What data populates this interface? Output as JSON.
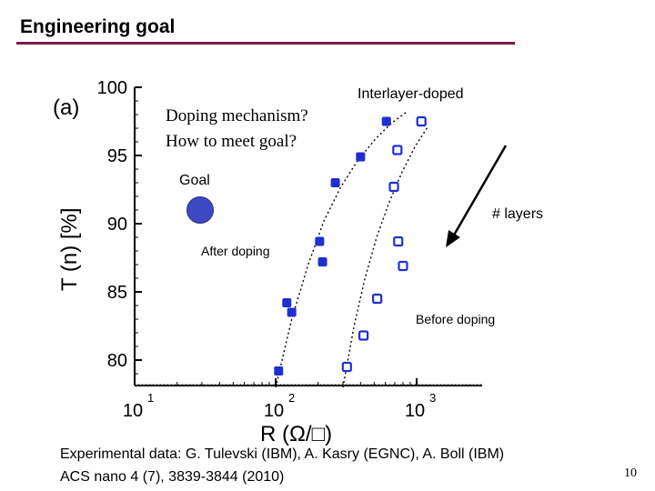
{
  "slide": {
    "title": "Engineering goal",
    "page_number": "10"
  },
  "annotations": {
    "question_1": "Doping mechanism?",
    "question_2": "How to meet goal?",
    "goal_label": "Goal",
    "layers_label": "# layers",
    "goal_color": "#3f48c2",
    "goal_point": {
      "R": 30,
      "T": 91
    }
  },
  "reference": {
    "line1": "Experimental data: G. Tulevski (IBM), A. Kasry (EGNC), A. Boll (IBM)",
    "line2": "ACS nano 4 (7), 3839-3844 (2010)"
  },
  "chart_data": {
    "type": "scatter",
    "panel_label": "(a)",
    "xlabel": "R  (Ω/□)",
    "ylabel": "T (n)  [%]",
    "x_scale": "log",
    "xlim": [
      10,
      1000
    ],
    "ylim": [
      78,
      100
    ],
    "x_ticks": [
      "10",
      "10",
      "10"
    ],
    "x_tick_exponents": [
      "1",
      "2",
      "3"
    ],
    "x_tick_values": [
      10,
      100,
      1000
    ],
    "y_ticks": [
      80,
      85,
      90,
      95,
      100
    ],
    "grid": false,
    "series": [
      {
        "name": "After doping",
        "marker": "filled-square",
        "color": "#1f2fd0",
        "x": [
          105,
          120,
          130,
          205,
          215,
          265,
          400,
          610
        ],
        "y": [
          79.2,
          84.2,
          83.5,
          88.7,
          87.2,
          93.0,
          94.9,
          97.5
        ]
      },
      {
        "name": "Before doping",
        "marker": "open-square",
        "color": "#1f2fd0",
        "x": [
          320,
          420,
          525,
          690,
          740,
          800,
          730,
          1080
        ],
        "y": [
          79.5,
          81.8,
          84.5,
          92.7,
          88.7,
          86.9,
          95.4,
          97.5
        ]
      }
    ],
    "curve_labels": [
      {
        "text": "Interlayer-doped"
      },
      {
        "text": "After doping"
      },
      {
        "text": "Before doping"
      }
    ],
    "fit_curves": [
      {
        "x": [
          100,
          130,
          170,
          220,
          290,
          380,
          500,
          650,
          850
        ],
        "y": [
          78,
          83,
          87,
          90.2,
          92.7,
          94.6,
          96.1,
          97.3,
          98.2
        ]
      },
      {
        "x": [
          300,
          360,
          430,
          520,
          640,
          790,
          980,
          1200
        ],
        "y": [
          78,
          82.5,
          86,
          89,
          91.6,
          93.8,
          95.7,
          97.1
        ]
      }
    ],
    "trend_arrow": {
      "direction": "down-left",
      "meaning": "# layers"
    }
  }
}
